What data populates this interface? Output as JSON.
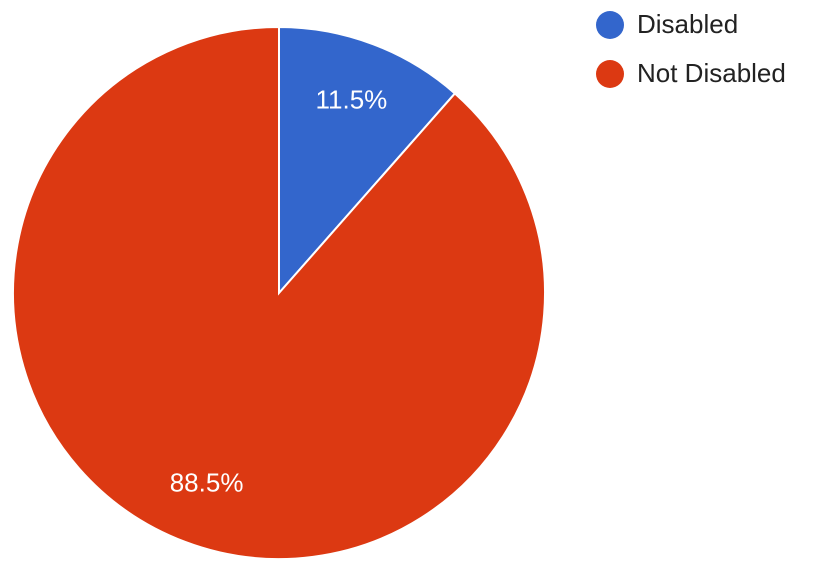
{
  "chart_data": {
    "type": "pie",
    "categories": [
      "Disabled",
      "Not Disabled"
    ],
    "values": [
      11.5,
      88.5
    ],
    "value_labels": [
      "11.5%",
      "88.5%"
    ],
    "colors": [
      "#3366cc",
      "#dc3912"
    ],
    "legend": "top-right"
  }
}
